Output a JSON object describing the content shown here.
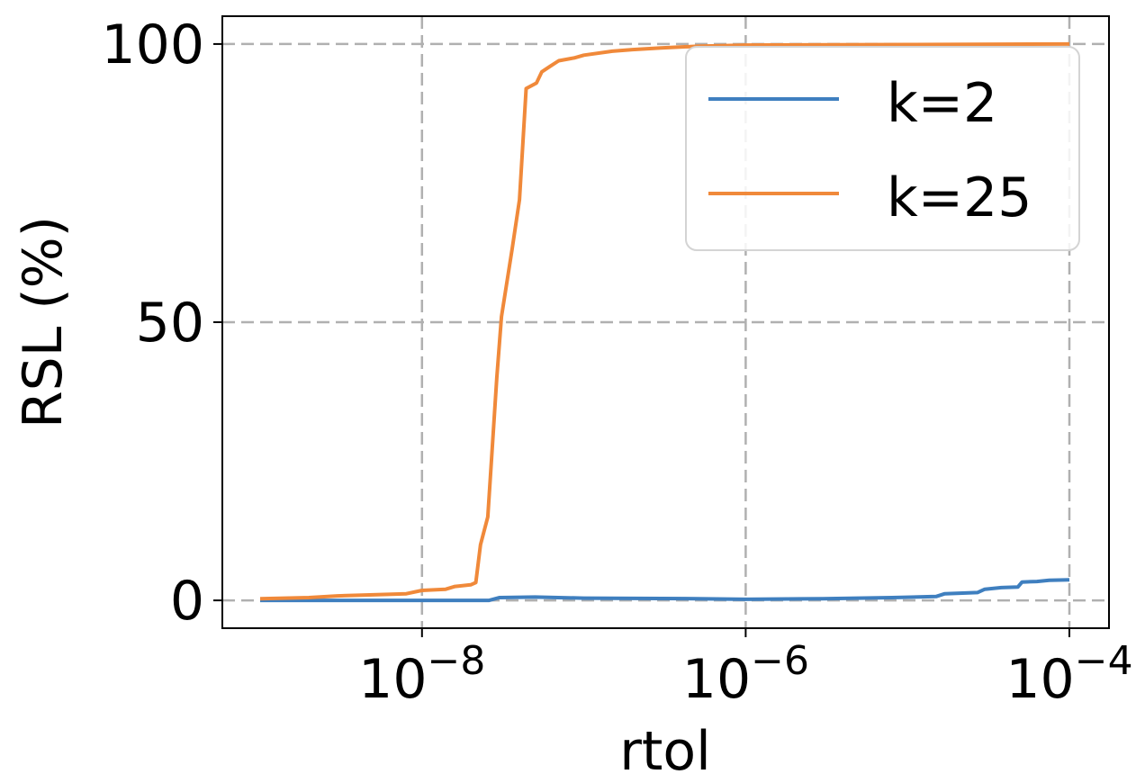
{
  "chart_data": {
    "type": "line",
    "xscale": "log",
    "xlabel": "rtol",
    "ylabel": "RSL (%)",
    "xlim": [
      1e-09,
      0.0001
    ],
    "ylim": [
      -5,
      105
    ],
    "x_ticks": [
      1e-08,
      1e-06,
      0.0001
    ],
    "x_tick_labels": [
      {
        "base": "10",
        "exp": "−8"
      },
      {
        "base": "10",
        "exp": "−6"
      },
      {
        "base": "10",
        "exp": "−4"
      }
    ],
    "y_ticks": [
      0,
      50,
      100
    ],
    "y_tick_labels": [
      "0",
      "50",
      "100"
    ],
    "grid": true,
    "legend_position": "top-right",
    "series": [
      {
        "name": "k=2",
        "color": "#3f7fbf",
        "points": [
          [
            1e-09,
            0
          ],
          [
            1e-08,
            0
          ],
          [
            2.6e-08,
            0
          ],
          [
            3e-08,
            0.5
          ],
          [
            5e-08,
            0.6
          ],
          [
            1e-07,
            0.4
          ],
          [
            5e-07,
            0.3
          ],
          [
            1e-06,
            0.2
          ],
          [
            3e-06,
            0.3
          ],
          [
            8e-06,
            0.5
          ],
          [
            1.5e-05,
            0.7
          ],
          [
            1.7e-05,
            1.2
          ],
          [
            2.7e-05,
            1.4
          ],
          [
            3e-05,
            2
          ],
          [
            3.8e-05,
            2.3
          ],
          [
            4.8e-05,
            2.4
          ],
          [
            5.1e-05,
            3.3
          ],
          [
            6.3e-05,
            3.4
          ],
          [
            7.5e-05,
            3.6
          ],
          [
            0.0001,
            3.7
          ]
        ]
      },
      {
        "name": "k=25",
        "color": "#f0893a",
        "points": [
          [
            1e-09,
            0.3
          ],
          [
            2e-09,
            0.5
          ],
          [
            3e-09,
            0.8
          ],
          [
            5e-09,
            1.0
          ],
          [
            8e-09,
            1.2
          ],
          [
            1e-08,
            1.8
          ],
          [
            1.4e-08,
            2.0
          ],
          [
            1.6e-08,
            2.5
          ],
          [
            2e-08,
            2.8
          ],
          [
            2.15e-08,
            3.2
          ],
          [
            2.3e-08,
            10
          ],
          [
            2.55e-08,
            15
          ],
          [
            2.9e-08,
            40
          ],
          [
            3.1e-08,
            51
          ],
          [
            3.6e-08,
            63
          ],
          [
            4e-08,
            72
          ],
          [
            4.4e-08,
            92
          ],
          [
            5.1e-08,
            93
          ],
          [
            5.5e-08,
            95
          ],
          [
            6.2e-08,
            96
          ],
          [
            7e-08,
            97
          ],
          [
            8.7e-08,
            97.5
          ],
          [
            1e-07,
            98
          ],
          [
            1.5e-07,
            98.7
          ],
          [
            2e-07,
            99
          ],
          [
            3e-07,
            99.3
          ],
          [
            5e-07,
            99.6
          ],
          [
            1e-06,
            99.8
          ],
          [
            1e-05,
            99.9
          ],
          [
            0.0001,
            100
          ]
        ]
      }
    ]
  }
}
